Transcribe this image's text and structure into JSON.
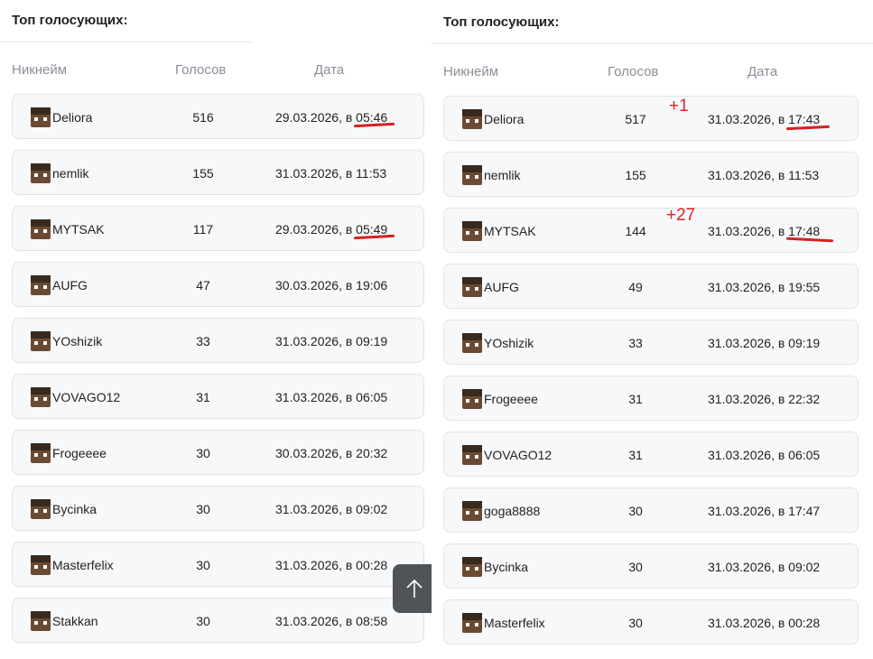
{
  "left": {
    "title": "Топ голосующих:",
    "headers": {
      "nick": "Никнейм",
      "votes": "Голосов",
      "date": "Дата"
    },
    "rows": [
      {
        "nick": "Deliora",
        "votes": "516",
        "date": "29.03.2026, в 05:46"
      },
      {
        "nick": "nemlik",
        "votes": "155",
        "date": "31.03.2026, в 11:53"
      },
      {
        "nick": "MYTSAK",
        "votes": "117",
        "date": "29.03.2026, в 05:49"
      },
      {
        "nick": "AUFG",
        "votes": "47",
        "date": "30.03.2026, в 19:06"
      },
      {
        "nick": "YOshizik",
        "votes": "33",
        "date": "31.03.2026, в 09:19"
      },
      {
        "nick": "VOVAGO12",
        "votes": "31",
        "date": "31.03.2026, в 06:05"
      },
      {
        "nick": "Frogeeee",
        "votes": "30",
        "date": "30.03.2026, в 20:32"
      },
      {
        "nick": "Bycinka",
        "votes": "30",
        "date": "31.03.2026, в 09:02"
      },
      {
        "nick": "Masterfelix",
        "votes": "30",
        "date": "31.03.2026, в 00:28"
      },
      {
        "nick": "Stakkan",
        "votes": "30",
        "date": "31.03.2026, в 08:58"
      }
    ]
  },
  "right": {
    "title": "Топ голосующих:",
    "headers": {
      "nick": "Никнейм",
      "votes": "Голосов",
      "date": "Дата"
    },
    "rows": [
      {
        "nick": "Deliora",
        "votes": "517",
        "date": "31.03.2026, в 17:43"
      },
      {
        "nick": "nemlik",
        "votes": "155",
        "date": "31.03.2026, в 11:53"
      },
      {
        "nick": "MYTSAK",
        "votes": "144",
        "date": "31.03.2026, в 17:48"
      },
      {
        "nick": "AUFG",
        "votes": "49",
        "date": "31.03.2026, в 19:55"
      },
      {
        "nick": "YOshizik",
        "votes": "33",
        "date": "31.03.2026, в 09:19"
      },
      {
        "nick": "Frogeeee",
        "votes": "31",
        "date": "31.03.2026, в 22:32"
      },
      {
        "nick": "VOVAGO12",
        "votes": "31",
        "date": "31.03.2026, в 06:05"
      },
      {
        "nick": "goga8888",
        "votes": "30",
        "date": "31.03.2026, в 17:47"
      },
      {
        "nick": "Bycinka",
        "votes": "30",
        "date": "31.03.2026, в 09:02"
      },
      {
        "nick": "Masterfelix",
        "votes": "30",
        "date": "31.03.2026, в 00:28"
      }
    ]
  },
  "annotations": {
    "plus_one": "+1",
    "plus_27": "+27"
  },
  "scroll_to_top_icon": "arrow-up-icon",
  "colors": {
    "annotation": "#e02020",
    "row_bg": "#f7f8fa",
    "header_text": "#8a8f98"
  }
}
